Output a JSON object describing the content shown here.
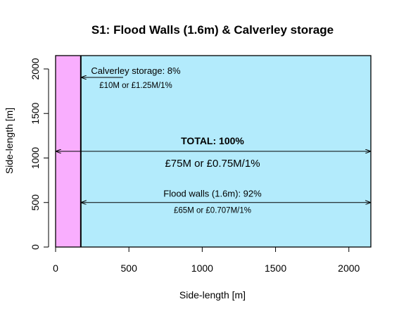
{
  "chart_data": {
    "type": "area",
    "title": "S1: Flood Walls (1.6m) & Calverley storage",
    "xlabel": "Side-length [m]",
    "ylabel": "Side-length [m]",
    "xlim": [
      0,
      2150
    ],
    "ylim": [
      0,
      2150
    ],
    "x_ticks": [
      0,
      500,
      1000,
      1500,
      2000
    ],
    "y_ticks": [
      0,
      500,
      1000,
      1500,
      2000
    ],
    "grid": false,
    "regions": [
      {
        "name": "Calverley storage",
        "x_start": 0,
        "x_end": 172,
        "color": "#f9aefe"
      },
      {
        "name": "Flood walls (1.6m)",
        "x_start": 172,
        "x_end": 2150,
        "color": "#b3ebfc"
      }
    ],
    "annotations": [
      {
        "id": "calverley",
        "text": "Calverley storage: 8%",
        "subtext": "£10M or £1.25M/1%",
        "x": 850,
        "y": 1800,
        "arrow_from": 210,
        "arrow_to": 172,
        "arrow_y": 1900
      },
      {
        "id": "total",
        "text": "TOTAL: 100%",
        "subtext": "£75M or £0.75M/1%",
        "x": 1075,
        "y": 1075,
        "arrow_from": 0,
        "arrow_to": 2150,
        "arrow_y": 1075
      },
      {
        "id": "flood_walls",
        "text": "Flood walls (1.6m): 92%",
        "subtext": "£65M or £0.707M/1%",
        "x": 1075,
        "y": 500,
        "arrow_from": 172,
        "arrow_to": 2150,
        "arrow_y": 500
      }
    ]
  }
}
